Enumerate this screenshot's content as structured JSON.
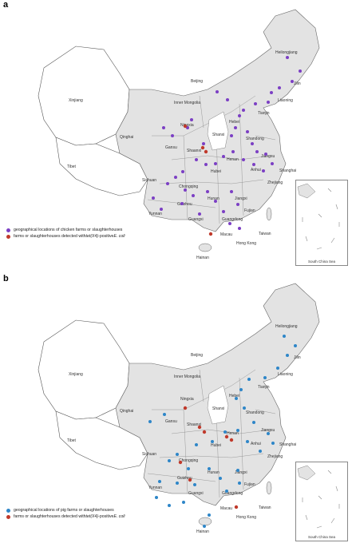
{
  "panels": [
    {
      "letter": "a",
      "legend_primary": "geographical locations of chicken farms or slaughterhouses",
      "legend_secondary_prefix": "farms or slaughterhouses detected with ",
      "legend_secondary_gene": "tet(X4)",
      "legend_secondary_mid": "-positive ",
      "legend_secondary_species": "E. coli",
      "primary_color": "#7b3fc4",
      "secondary_color": "#c0392b",
      "inset_title": "South China Sea"
    },
    {
      "letter": "b",
      "legend_primary": "geographical locations of pig farms or slaughterhouses",
      "legend_secondary_prefix": "farms or slaughterhouses detected with ",
      "legend_secondary_gene": "tet(X4)",
      "legend_secondary_mid": "-positive ",
      "legend_secondary_species": "E. coli",
      "primary_color": "#2e86c8",
      "secondary_color": "#c0392b",
      "inset_title": "South China Sea"
    }
  ],
  "provinces": [
    "Heilongjiang",
    "Jilin",
    "Liaoning",
    "Beijing",
    "Tianjin",
    "Hebei",
    "Inner Mongolia",
    "Xinjiang",
    "Tibet",
    "Qinghai",
    "Gansu",
    "Ningxia",
    "Shanxi",
    "Shaanxi",
    "Shandong",
    "Henan",
    "Jiangsu",
    "Anhui",
    "Shanghai",
    "Zhejiang",
    "Hubei",
    "Sichuan",
    "Chongqing",
    "Guizhou",
    "Hunan",
    "Jiangxi",
    "Fujian",
    "Yunnan",
    "Guangxi",
    "Guangdong",
    "Hainan",
    "Macau",
    "Hong Kong",
    "Taiwan"
  ]
}
